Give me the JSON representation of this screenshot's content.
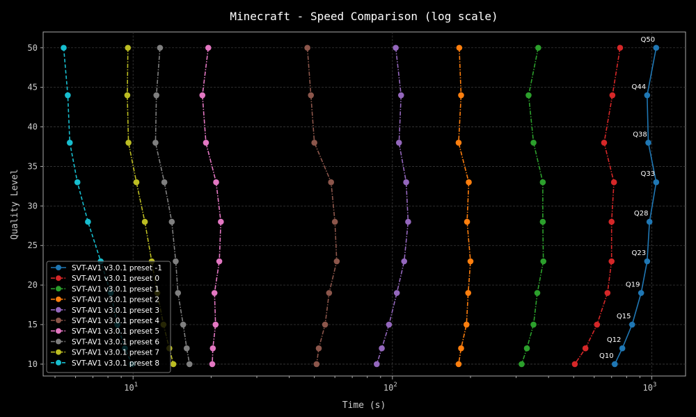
{
  "chart_data": {
    "type": "line",
    "title": "Minecraft - Speed Comparison (log scale)",
    "xlabel": "Time (s)",
    "ylabel": "Quality Level",
    "xscale": "log",
    "xlim": [
      4.5,
      1350
    ],
    "ylim": [
      8.5,
      52
    ],
    "yticks": [
      10,
      15,
      20,
      25,
      30,
      35,
      40,
      45,
      50
    ],
    "xticks": [
      {
        "value": 10,
        "base": "10",
        "exp": "1"
      },
      {
        "value": 100,
        "base": "10",
        "exp": "2"
      },
      {
        "value": 1000,
        "base": "10",
        "exp": "3"
      }
    ],
    "grid": true,
    "legend_position": "lower-left",
    "series": [
      {
        "name": "SVT-AV1 v3.0.1 preset -1",
        "color": "#1f77b4",
        "dash": "solid",
        "points": [
          [
            1040,
            50
          ],
          [
            960,
            44
          ],
          [
            970,
            38
          ],
          [
            1040,
            33
          ],
          [
            980,
            28
          ],
          [
            960,
            23
          ],
          [
            910,
            19
          ],
          [
            840,
            15
          ],
          [
            770,
            12
          ],
          [
            720,
            10
          ]
        ],
        "labels": [
          "Q50",
          "Q44",
          "Q38",
          "Q33",
          "Q28",
          "Q23",
          "Q19",
          "Q15",
          "Q12",
          "Q10"
        ]
      },
      {
        "name": "SVT-AV1 v3.0.1 preset 0",
        "color": "#d62728",
        "dash": "dashdot",
        "points": [
          [
            755,
            50
          ],
          [
            705,
            44
          ],
          [
            655,
            38
          ],
          [
            715,
            33
          ],
          [
            700,
            28
          ],
          [
            700,
            23
          ],
          [
            675,
            19
          ],
          [
            615,
            15
          ],
          [
            555,
            12
          ],
          [
            505,
            10
          ]
        ]
      },
      {
        "name": "SVT-AV1 v3.0.1 preset 1",
        "color": "#2ca02c",
        "dash": "dashdot",
        "points": [
          [
            365,
            50
          ],
          [
            335,
            44
          ],
          [
            350,
            38
          ],
          [
            380,
            33
          ],
          [
            380,
            28
          ],
          [
            382,
            23
          ],
          [
            362,
            19
          ],
          [
            350,
            15
          ],
          [
            330,
            12
          ],
          [
            315,
            10
          ]
        ]
      },
      {
        "name": "SVT-AV1 v3.0.1 preset 2",
        "color": "#ff7f0e",
        "dash": "dashdot",
        "points": [
          [
            181,
            50
          ],
          [
            184,
            44
          ],
          [
            180,
            38
          ],
          [
            197,
            33
          ],
          [
            194,
            28
          ],
          [
            200,
            23
          ],
          [
            196,
            19
          ],
          [
            193,
            15
          ],
          [
            184,
            12
          ],
          [
            180,
            10
          ]
        ]
      },
      {
        "name": "SVT-AV1 v3.0.1 preset 3",
        "color": "#9467bd",
        "dash": "dashdot",
        "points": [
          [
            103,
            50
          ],
          [
            108,
            44
          ],
          [
            106,
            38
          ],
          [
            113,
            33
          ],
          [
            115,
            28
          ],
          [
            111,
            23
          ],
          [
            104,
            19
          ],
          [
            97,
            15
          ],
          [
            91,
            12
          ],
          [
            87,
            10
          ]
        ]
      },
      {
        "name": "SVT-AV1 v3.0.1 preset 4",
        "color": "#8c564b",
        "dash": "dashdot",
        "points": [
          [
            47,
            50
          ],
          [
            48.5,
            44
          ],
          [
            50,
            38
          ],
          [
            58,
            33
          ],
          [
            60,
            28
          ],
          [
            61,
            23
          ],
          [
            57,
            19
          ],
          [
            55,
            15
          ],
          [
            52,
            12
          ],
          [
            51,
            10
          ]
        ]
      },
      {
        "name": "SVT-AV1 v3.0.1 preset 5",
        "color": "#e377c2",
        "dash": "dashdot",
        "points": [
          [
            19.5,
            50
          ],
          [
            18.5,
            44
          ],
          [
            19.1,
            38
          ],
          [
            20.9,
            33
          ],
          [
            21.8,
            28
          ],
          [
            21.5,
            23
          ],
          [
            20.6,
            19
          ],
          [
            20.8,
            15
          ],
          [
            20.3,
            12
          ],
          [
            20.2,
            10
          ]
        ]
      },
      {
        "name": "SVT-AV1 v3.0.1 preset 6",
        "color": "#7f7f7f",
        "dash": "dashdot",
        "points": [
          [
            12.7,
            50
          ],
          [
            12.3,
            44
          ],
          [
            12.2,
            38
          ],
          [
            13.2,
            33
          ],
          [
            14.1,
            28
          ],
          [
            14.6,
            23
          ],
          [
            14.9,
            19
          ],
          [
            15.6,
            15
          ],
          [
            16.1,
            12
          ],
          [
            16.5,
            10
          ]
        ]
      },
      {
        "name": "SVT-AV1 v3.0.1 preset 7",
        "color": "#bcbd22",
        "dash": "dashdot",
        "points": [
          [
            9.55,
            50
          ],
          [
            9.5,
            44
          ],
          [
            9.6,
            38
          ],
          [
            10.3,
            33
          ],
          [
            11.1,
            28
          ],
          [
            11.8,
            23
          ],
          [
            12.4,
            19
          ],
          [
            13.1,
            15
          ],
          [
            13.8,
            12
          ],
          [
            14.3,
            10
          ]
        ]
      },
      {
        "name": "SVT-AV1 v3.0.1 preset 8",
        "color": "#17becf",
        "dash": "dashed",
        "points": [
          [
            5.4,
            50
          ],
          [
            5.6,
            44
          ],
          [
            5.7,
            38
          ],
          [
            6.1,
            33
          ],
          [
            6.7,
            28
          ],
          [
            7.5,
            23
          ],
          [
            8.2,
            19
          ],
          [
            8.7,
            15
          ],
          [
            9.3,
            12
          ],
          [
            9.9,
            10
          ]
        ]
      }
    ]
  }
}
